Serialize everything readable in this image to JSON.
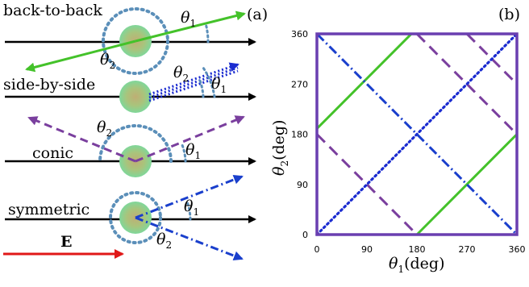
{
  "panel_a": {
    "tag": "(a)",
    "rows": [
      {
        "name": "back-to-back",
        "theta1": "θ",
        "theta1_sub": "1",
        "theta2": "θ",
        "theta2_sub": "2"
      },
      {
        "name": "side-by-side",
        "theta1": "θ",
        "theta1_sub": "1",
        "theta2": "θ",
        "theta2_sub": "2"
      },
      {
        "name": "conic",
        "theta1": "θ",
        "theta1_sub": "1",
        "theta2": "θ",
        "theta2_sub": "2"
      },
      {
        "name": "symmetric",
        "theta1": "θ",
        "theta1_sub": "1",
        "theta2": "θ",
        "theta2_sub": "2"
      }
    ],
    "field_label": "E",
    "colors": {
      "back_to_back": "#44c22a",
      "side_by_side": "#1a2bd0",
      "conic": "#7a3f9e",
      "symmetric": "#1a3fcc",
      "field": "#e01818",
      "circle_dots": "#5b8fb9",
      "sphere_center": "#bfae74",
      "sphere_edge": "#7fd79a"
    }
  },
  "panel_b": {
    "tag": "(b)",
    "x_label_symbol": "θ",
    "x_label_sub": "1",
    "x_label_unit": "(deg)",
    "y_label_symbol": "θ",
    "y_label_sub": "2",
    "y_label_unit": "(deg)",
    "x_ticks": [
      "0",
      "90",
      "180",
      "270",
      "360"
    ],
    "y_ticks": [
      "0",
      "90",
      "180",
      "270",
      "360"
    ],
    "frame_color": "#6a3fb0"
  },
  "chart_data": {
    "type": "line",
    "xlim": [
      0,
      360
    ],
    "ylim": [
      0,
      360
    ],
    "grid": false,
    "series": [
      {
        "style": "solid",
        "color": "#44c22a",
        "segments": [
          [
            [
              0,
              190
            ],
            [
              170,
              360
            ]
          ],
          [
            [
              180,
              0
            ],
            [
              360,
              180
            ]
          ]
        ]
      },
      {
        "style": "dashed",
        "color": "#7a3f9e",
        "segments": [
          [
            [
              180,
              360
            ],
            [
              360,
              180
            ]
          ],
          [
            [
              0,
              180
            ],
            [
              180,
              0
            ]
          ],
          [
            [
              270,
              360
            ],
            [
              360,
              270
            ]
          ]
        ]
      },
      {
        "style": "dotted",
        "color": "#1a2bd0",
        "segments": [
          [
            [
              0,
              0
            ],
            [
              360,
              360
            ]
          ]
        ]
      },
      {
        "style": "dash-dot",
        "color": "#1a3fcc",
        "segments": [
          [
            [
              0,
              360
            ],
            [
              360,
              0
            ]
          ]
        ]
      }
    ]
  }
}
